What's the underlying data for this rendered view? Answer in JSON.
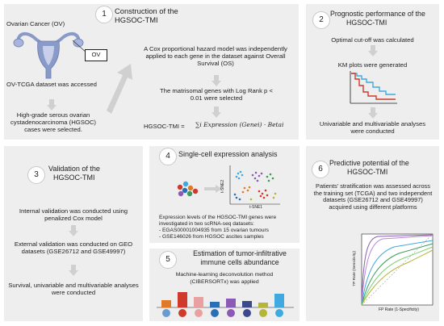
{
  "panel1": {
    "number": "1",
    "title_line1": "Construction of the",
    "title_line2": "HGSOC-TMI",
    "organ_label": "Ovarian Cancer (OV)",
    "ov_tag": "OV",
    "dataset_text": "OV-TCGA dataset was accessed",
    "selection_text": "High-grade serous ovarian cystadenocarcinoma (HGSOC) cases were selected.",
    "cox_text": "A Cox proportional hazard model was independently applied to each gene in the dataset against Overall Survival (OS)",
    "matrisomal_text": "The matrisomal genes with Log Rank p < 0.01 were selected",
    "formula_lhs": "HGSOC-TMI = ",
    "formula_rhs": "∑i Expression (Genei) · Betai"
  },
  "panel2": {
    "number": "2",
    "title_line1": "Prognostic performance of the",
    "title_line2": "HGSOC-TMI",
    "step1": "Optimal cut-off was calculated",
    "step2": "KM plots were generated",
    "step3": "Univariable and multivariable analyses were conducted"
  },
  "panel3": {
    "number": "3",
    "title_line1": "Validation of the",
    "title_line2": "HGSOC-TMI",
    "step1": "Internal validation was conducted using penalized Cox model",
    "step2": "External validation was conducted on GEO datasets (GSE26712 and GSE49997)",
    "step3": "Survival, univariable and multivariable analyses were conducted"
  },
  "panel4": {
    "number": "4",
    "title": "Single-cell expression analysis",
    "axis_y": "t-SNE2",
    "axis_x": "t-SNE1",
    "intro": "Expression levels of the HGSOC-TMI genes were investigated in two scRNA-seq datasets:",
    "item1": "- EGAS00001004935 from 15 ovarian tumours",
    "item2": "- GSE146026 from HGSOC ascites samples"
  },
  "panel5": {
    "number": "5",
    "title_line1": "Estimation of tumor-infiltrative",
    "title_line2": "immune cells abundance",
    "method_line1": "Machine-learning deconvolution method",
    "method_line2": "(CIBERSORTx) was applied"
  },
  "panel6": {
    "number": "6",
    "title_line1": "Predictive potential of the",
    "title_line2": "HGSOC-TMI",
    "text": "Patients' stratification was assessed across the training set (TCGA) and two independent datasets (GSE26712 and GSE49997) acquired using different platforms",
    "roc_ylabel": "TP Rate (Sensitivity)",
    "roc_xlabel": "FP Rate (1-Specificity)"
  },
  "colors": {
    "panel_bg": "#eeeeee",
    "arrow": "#d0d0d0",
    "km_blue": "#3fa9e0",
    "km_red": "#d03a2a",
    "uterus": "#8a9ac8"
  }
}
